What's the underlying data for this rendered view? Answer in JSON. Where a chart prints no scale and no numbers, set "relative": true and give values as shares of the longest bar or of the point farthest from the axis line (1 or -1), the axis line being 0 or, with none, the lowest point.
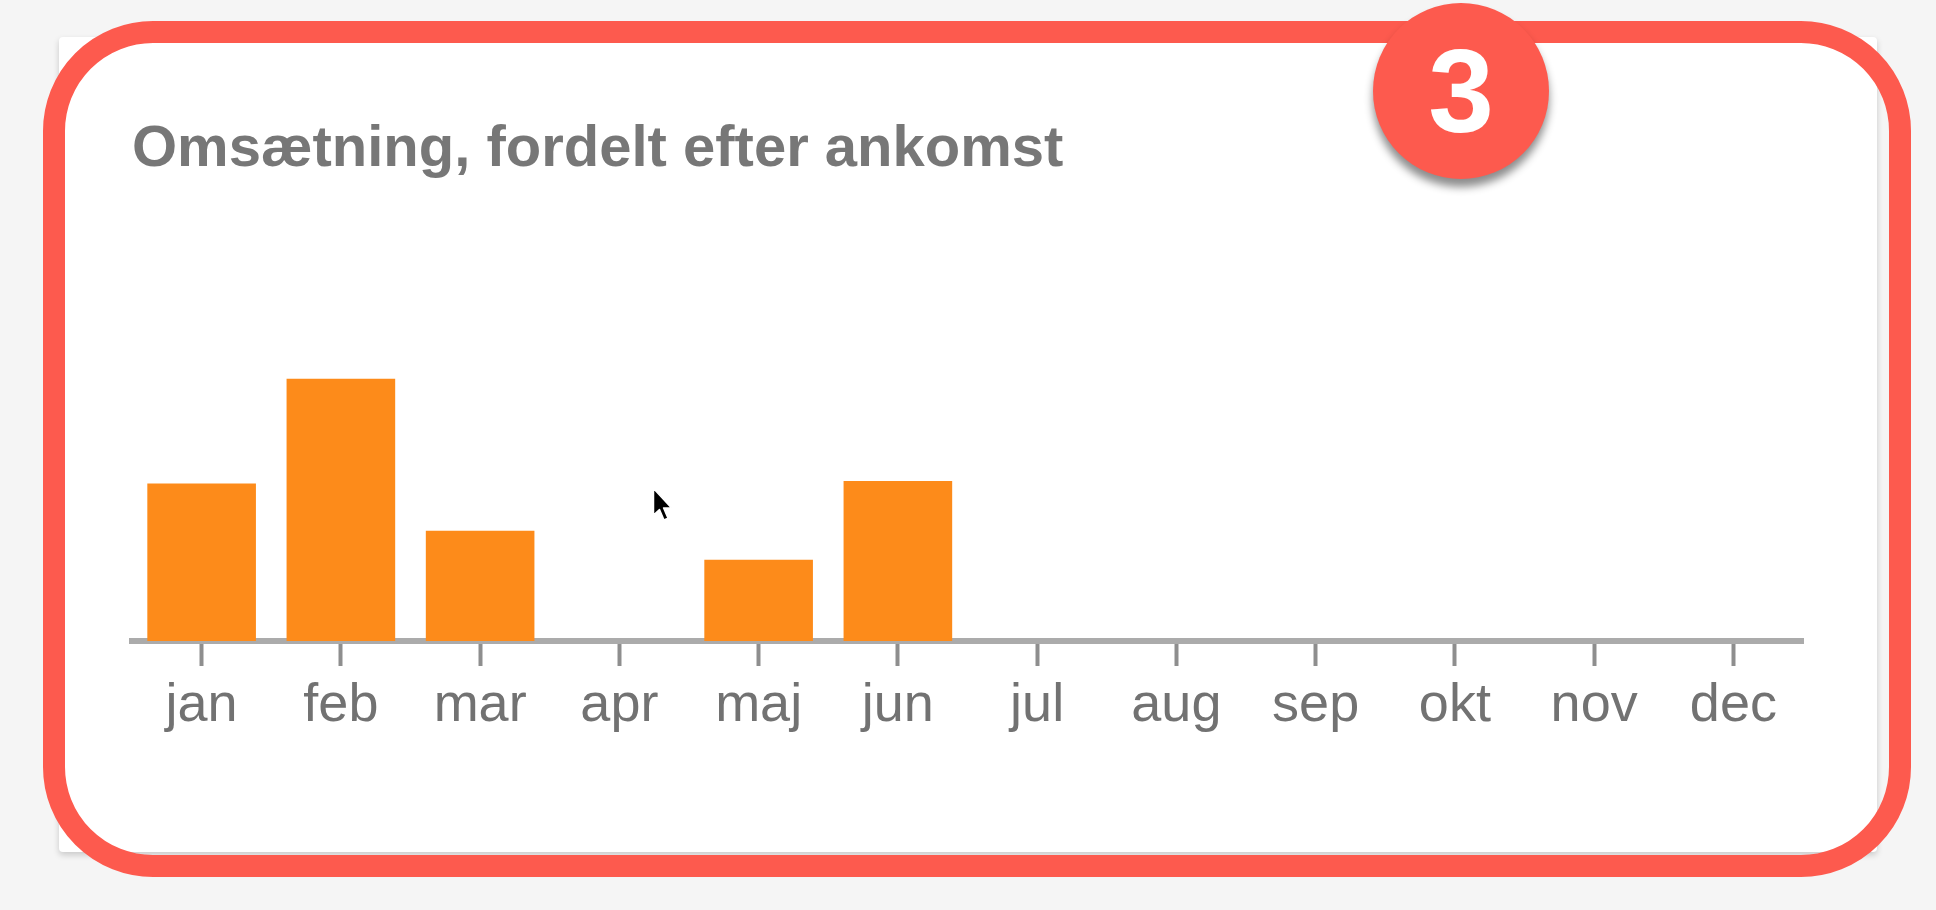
{
  "chart_data": {
    "type": "bar",
    "title": "Omsætning, fordelt efter ankomst",
    "categories": [
      "jan",
      "feb",
      "mar",
      "apr",
      "maj",
      "jun",
      "jul",
      "aug",
      "sep",
      "okt",
      "nov",
      "dec"
    ],
    "values": [
      0.6,
      1,
      0.42,
      0,
      0.31,
      0.61,
      0,
      0,
      0,
      0,
      0,
      0
    ],
    "color": "#fd8b1a",
    "relative": true,
    "annotations": [
      "3"
    ]
  }
}
